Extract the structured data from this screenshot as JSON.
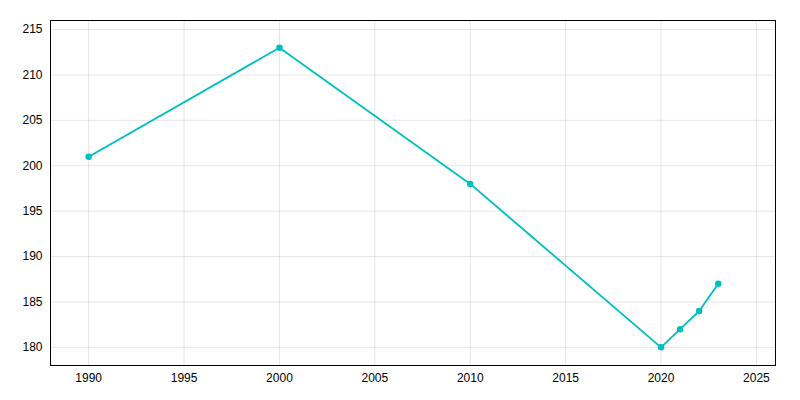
{
  "chart_data": {
    "type": "line",
    "x": [
      1990,
      2000,
      2010,
      2020,
      2021,
      2022,
      2023
    ],
    "values": [
      201,
      213,
      198,
      180,
      182,
      184,
      187
    ],
    "color": "#00BFBF",
    "marker": "circle",
    "xlim": [
      1988,
      2026
    ],
    "ylim": [
      178,
      216
    ],
    "xticks": [
      1990,
      1995,
      2000,
      2005,
      2010,
      2015,
      2020,
      2025
    ],
    "yticks": [
      180,
      185,
      190,
      195,
      200,
      205,
      210,
      215
    ],
    "grid": true
  }
}
